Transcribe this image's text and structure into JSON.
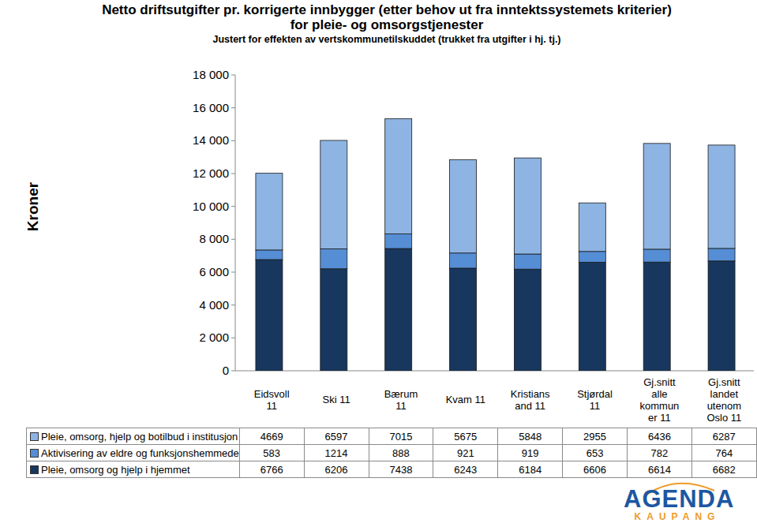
{
  "chart_data": {
    "type": "bar",
    "title": "Netto driftsutgifter pr. korrigerte innbygger (etter behov ut fra inntektssystemets kriterier)",
    "subtitle": "for pleie- og omsorgstjenester",
    "note": "Justert for effekten av vertskommunetilskuddet (trukket fra utgifter i hj. tj.)",
    "y_label": "Kroner",
    "stacked": true,
    "categories": [
      "Eidsvoll 11",
      "Ski 11",
      "Bærum 11",
      "Kvam 11",
      "Kristiansand 11",
      "Stjørdal 11",
      "Gj.snitt alle kommuner 11",
      "Gj.snitt landet utenom Oslo 11"
    ],
    "series": [
      {
        "name": "Pleie, omsorg, hjelp og botilbud i institusjon",
        "color": "#8db4e2",
        "values": [
          4669,
          6597,
          7015,
          5675,
          5848,
          2955,
          6436,
          6287
        ]
      },
      {
        "name": "Aktivisering av eldre og funksjonshemmede",
        "color": "#558ed5",
        "values": [
          583,
          1214,
          888,
          921,
          919,
          653,
          782,
          764
        ]
      },
      {
        "name": "Pleie, omsorg og hjelp i hjemmet",
        "color": "#17375e",
        "values": [
          6766,
          6206,
          7438,
          6243,
          6184,
          6606,
          6614,
          6682
        ]
      }
    ],
    "ylim": [
      0,
      18000
    ],
    "yticks": [
      0,
      {
        "value": 2000,
        "label": "2 000"
      },
      {
        "value": 4000,
        "label": "4 000"
      },
      {
        "value": 6000,
        "label": "6 000"
      },
      {
        "value": 8000,
        "label": "8 000"
      },
      {
        "value": 10000,
        "label": "10 000"
      },
      {
        "value": 12000,
        "label": "12 000"
      },
      {
        "value": 14000,
        "label": "14 000"
      },
      {
        "value": 16000,
        "label": "16 000"
      },
      {
        "value": 18000,
        "label": "18 000"
      }
    ],
    "grid": false,
    "legend": "bottom"
  },
  "logo": {
    "name": "AGENDA",
    "sub": "KAUPANG"
  }
}
